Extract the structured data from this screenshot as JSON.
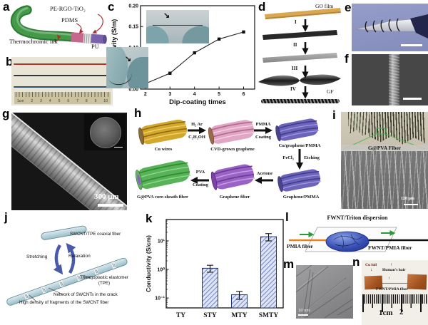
{
  "panels": {
    "a": {
      "label": "a",
      "coating": "PE-RGO-TiO₂",
      "pdms": "PDMS",
      "ink": "Thermochromic ink",
      "pu": "PU"
    },
    "b": {
      "label": "b",
      "ruler_labels": [
        "1cm",
        "2",
        "3",
        "4",
        "5",
        "6",
        "7",
        "8",
        "9",
        "10"
      ]
    },
    "c": {
      "label": "c"
    },
    "d": {
      "label": "d",
      "go_film": "GO film",
      "gf": "GF",
      "steps": [
        "I",
        "II",
        "III",
        "IV"
      ]
    },
    "e": {
      "label": "e"
    },
    "f": {
      "label": "f"
    },
    "g": {
      "label": "g",
      "scale_bar": "300 μm"
    },
    "h": {
      "label": "h",
      "stage_cu_wires": "Cu wires",
      "stage_cvd": "CVD-grown graphene",
      "stage_cu_graphene_pmma": "Cu/graphene/PMMA",
      "stage_graphene_pmma": "Graphene/PMMA",
      "stage_graphene_fiber": "Graphene fiber",
      "stage_gpva": "G@PVA core-sheath fiber",
      "arrow1_line1": "H₂  Ar",
      "arrow1_line2": "C₂H₅OH",
      "arrow2_line1": "PMMA",
      "arrow2_line2": "Coating",
      "arrow3_left": "FeCl₃",
      "arrow3_right": "Etching",
      "arrow4_label": "Acetone",
      "arrow5_line1": "PVA",
      "arrow5_line2": "Coating"
    },
    "i": {
      "label": "i",
      "caption": "G@PVA Fiber",
      "scale_bar": "120 μm"
    },
    "j": {
      "label": "j",
      "coaxial_fiber": "SWCNT/TPE coaxial fiber",
      "stretching": "Stretching",
      "relaxation": "Relaxation",
      "tpe_line1": "Thermoplastic elastomer",
      "tpe_line2": "(TPE)",
      "network": "Network of SWCNTs in the crack",
      "high_density": "High density of fragments of the SWCNT fiber"
    },
    "k": {
      "label": "k"
    },
    "l": {
      "label": "l",
      "dispersion": "FWNT/Triton dispersion",
      "pmia_fiber": "PMIA fiber",
      "fwnt_pmia_fiber": "FWNT/PMIA fiber"
    },
    "m": {
      "label": "m",
      "scale_bar": "10 nm"
    },
    "n": {
      "label": "n",
      "cu_foil": "Cu foil",
      "down_arrow": "↓",
      "up_arrow": "↑",
      "hair": "Human's hair",
      "fiber": "FWNT/PMIA fiber",
      "ruler_labels": [
        "1cm",
        "2"
      ]
    }
  },
  "colors": {
    "thermochromic_green": "#3f8f42",
    "pdms_pink": "#c4688e",
    "pu_purple": "#7a63ad",
    "cu_wires": "#d2a72c",
    "cvd_graphene": "#e0a6c4",
    "cu_graphene_pmma": "#6b64ba",
    "graphene_fiber": "#9a62c4",
    "gpva_sheath": "#58b258",
    "gpva_core": "#8a5fc2",
    "k_bar_fill": "#dde4f6",
    "k_bar_hatch": "#5a6cb4",
    "l_green_arrow": "#2a9a3a",
    "l_pmia_orange": "#e8821e"
  },
  "chart_data": [
    {
      "panel": "c",
      "type": "line",
      "xlabel": "Dip-coating times",
      "ylabel": "Conductivity (S/m)",
      "x": [
        2,
        3,
        4,
        5,
        6
      ],
      "y": [
        0.013,
        0.038,
        0.087,
        0.12,
        0.137
      ],
      "xticks": [
        2,
        3,
        4,
        5,
        6
      ],
      "yticks": [
        0.0,
        0.05,
        0.1,
        0.15,
        0.2
      ],
      "xlim": [
        1.8,
        6.45
      ],
      "ylim": [
        0.0,
        0.2
      ],
      "marker": "square",
      "line_color": "#222222",
      "grid": false
    },
    {
      "panel": "k",
      "type": "bar",
      "ylabel": "Conductivity (S/cm)",
      "categories": [
        "TY",
        "STY",
        "MTY",
        "SMTY"
      ],
      "values": [
        null,
        1.1,
        0.13,
        14
      ],
      "errors": [
        null,
        0.3,
        0.04,
        4
      ],
      "yscale": "log",
      "ylim": [
        0.045,
        56
      ],
      "ytick_values": [
        0.1,
        1,
        10
      ],
      "ytick_labels": [
        "10⁻¹",
        "10⁰",
        "10¹"
      ],
      "bar_fill": "#dde4f6",
      "bar_hatch": "#5a6cb4",
      "grid": false
    }
  ]
}
